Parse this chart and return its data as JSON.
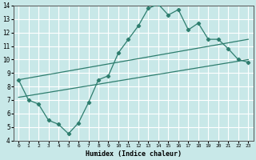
{
  "xlabel": "Humidex (Indice chaleur)",
  "xlim": [
    -0.5,
    23.5
  ],
  "ylim": [
    4,
    14
  ],
  "xticks": [
    0,
    1,
    2,
    3,
    4,
    5,
    6,
    7,
    8,
    9,
    10,
    11,
    12,
    13,
    14,
    15,
    16,
    17,
    18,
    19,
    20,
    21,
    22,
    23
  ],
  "yticks": [
    4,
    5,
    6,
    7,
    8,
    9,
    10,
    11,
    12,
    13,
    14
  ],
  "bg_color": "#c8e8e8",
  "line_color": "#2e7d6e",
  "grid_color": "#ffffff",
  "line1_x": [
    0,
    1,
    2,
    3,
    4,
    5,
    6,
    7,
    8,
    9,
    10,
    11,
    12,
    13,
    14,
    15,
    16,
    17,
    18,
    19,
    20,
    21,
    22,
    23
  ],
  "line1_y": [
    8.5,
    7.0,
    6.7,
    5.5,
    5.2,
    4.5,
    5.3,
    6.8,
    8.5,
    8.8,
    10.5,
    11.5,
    12.5,
    13.8,
    14.1,
    13.3,
    13.7,
    12.2,
    12.7,
    11.5,
    11.5,
    10.8,
    10.0,
    9.8
  ],
  "line2_x": [
    0,
    23
  ],
  "line2_y": [
    7.2,
    10.0
  ],
  "line3_x": [
    0,
    23
  ],
  "line3_y": [
    8.5,
    11.5
  ]
}
